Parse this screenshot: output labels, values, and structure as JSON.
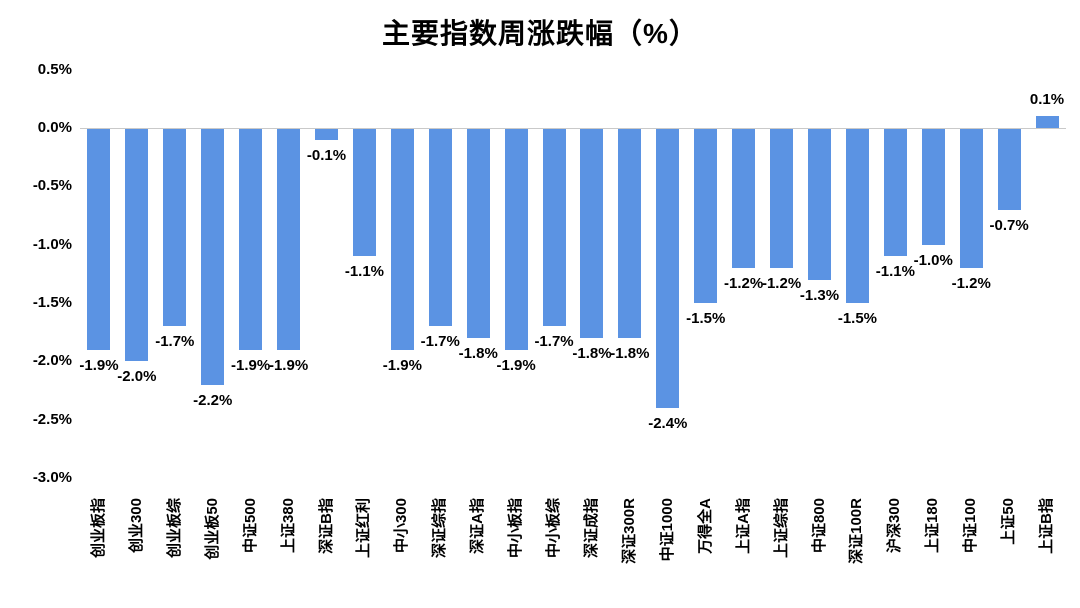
{
  "chart": {
    "title": "主要指数周涨跌幅（%）"
  },
  "chart_data": {
    "type": "bar",
    "title": "主要指数周涨跌幅（%）",
    "categories": [
      "创业板指",
      "创业300",
      "创业板综",
      "创业板50",
      "中证500",
      "上证380",
      "深证B指",
      "上证红利",
      "中小300",
      "深证综指",
      "深证A指",
      "中小板指",
      "中小板综",
      "深证成指",
      "深证300R",
      "中证1000",
      "万得全A",
      "上证A指",
      "上证综指",
      "中证800",
      "深证100R",
      "沪深300",
      "上证180",
      "中证100",
      "上证50",
      "上证B指"
    ],
    "values": [
      -1.9,
      -2.0,
      -1.7,
      -2.2,
      -1.9,
      -1.9,
      -0.1,
      -1.1,
      -1.9,
      -1.7,
      -1.8,
      -1.9,
      -1.7,
      -1.8,
      -1.8,
      -2.4,
      -1.5,
      -1.2,
      -1.2,
      -1.3,
      -1.5,
      -1.1,
      -1.0,
      -1.2,
      -0.7,
      0.1
    ],
    "data_labels": [
      "-1.9%",
      "-2.0%",
      "-1.7%",
      "-2.2%",
      "-1.9%",
      "-1.9%",
      "-0.1%",
      "-1.1%",
      "-1.9%",
      "-1.7%",
      "-1.8%",
      "-1.9%",
      "-1.7%",
      "-1.8%",
      "-1.8%",
      "-2.4%",
      "-1.5%",
      "-1.2%",
      "-1.2%",
      "-1.3%",
      "-1.5%",
      "-1.1%",
      "-1.0%",
      "-1.2%",
      "-0.7%",
      "0.1%"
    ],
    "xlabel": "",
    "ylabel": "",
    "ylim": [
      -3.0,
      0.5
    ],
    "y_ticks": [
      {
        "label": "0.5%",
        "value": 0.5
      },
      {
        "label": "0.0%",
        "value": 0.0
      },
      {
        "label": "-0.5%",
        "value": -0.5
      },
      {
        "label": "-1.0%",
        "value": -1.0
      },
      {
        "label": "-1.5%",
        "value": -1.5
      },
      {
        "label": "-2.0%",
        "value": -2.0
      },
      {
        "label": "-2.5%",
        "value": -2.5
      },
      {
        "label": "-3.0%",
        "value": -3.0
      }
    ],
    "grid": false,
    "legend": false,
    "value_suffix": "%",
    "colors": {
      "bar": "#5b93e3",
      "label_text": "#000000",
      "axis_line": "#c9c9c9",
      "background": "#ffffff"
    }
  }
}
